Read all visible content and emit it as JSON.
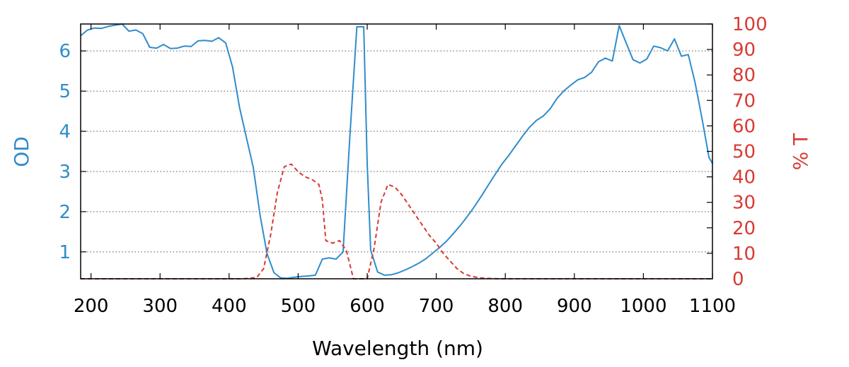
{
  "chart_data": {
    "type": "line",
    "title": "",
    "xlabel": "Wavelength (nm)",
    "ylabel_left": "OD",
    "ylabel_right": "% T",
    "xlim": [
      185,
      1100
    ],
    "ylim_left": [
      0.33,
      6.67
    ],
    "ylim_right": [
      0,
      100
    ],
    "xticks": [
      200,
      300,
      400,
      500,
      600,
      700,
      800,
      900,
      1000,
      1100
    ],
    "yticks_left": [
      1,
      2,
      3,
      4,
      5,
      6
    ],
    "yticks_right": [
      0,
      10,
      20,
      30,
      40,
      50,
      60,
      70,
      80,
      90,
      100
    ],
    "grid": "horizontal-dotted",
    "colors": {
      "od": "#2f8ccc",
      "transmission": "#d83a33"
    },
    "series": [
      {
        "axis": "left",
        "style": "solid",
        "x": [
          185,
          195,
          205,
          215,
          225,
          235,
          245,
          255,
          265,
          275,
          285,
          295,
          305,
          315,
          325,
          335,
          345,
          355,
          365,
          375,
          385,
          395,
          405,
          415,
          425,
          435,
          445,
          455,
          465,
          475,
          485,
          495,
          505,
          515,
          525,
          535,
          545,
          555,
          565,
          575,
          585,
          590,
          595,
          600,
          605,
          615,
          625,
          635,
          645,
          655,
          665,
          675,
          685,
          695,
          705,
          715,
          725,
          735,
          745,
          755,
          765,
          775,
          785,
          795,
          805,
          815,
          825,
          835,
          845,
          855,
          865,
          875,
          885,
          895,
          905,
          915,
          925,
          935,
          945,
          955,
          965,
          975,
          985,
          995,
          1005,
          1015,
          1025,
          1035,
          1045,
          1055,
          1065,
          1075,
          1085,
          1095,
          1100
        ],
        "values": [
          6.38,
          6.52,
          6.57,
          6.56,
          6.61,
          6.64,
          6.67,
          6.49,
          6.52,
          6.43,
          6.09,
          6.07,
          6.16,
          6.06,
          6.07,
          6.12,
          6.11,
          6.25,
          6.26,
          6.24,
          6.33,
          6.2,
          5.6,
          4.6,
          3.85,
          3.1,
          1.9,
          0.95,
          0.48,
          0.35,
          0.34,
          0.37,
          0.39,
          0.4,
          0.42,
          0.82,
          0.85,
          0.82,
          1.0,
          3.9,
          6.6,
          6.6,
          6.6,
          3.2,
          1.05,
          0.5,
          0.42,
          0.43,
          0.48,
          0.55,
          0.63,
          0.72,
          0.83,
          0.97,
          1.11,
          1.27,
          1.46,
          1.66,
          1.88,
          2.12,
          2.38,
          2.65,
          2.92,
          3.18,
          3.4,
          3.64,
          3.88,
          4.1,
          4.27,
          4.38,
          4.56,
          4.82,
          5.01,
          5.15,
          5.28,
          5.34,
          5.47,
          5.73,
          5.82,
          5.75,
          6.63,
          6.2,
          5.78,
          5.7,
          5.8,
          6.12,
          6.08,
          6.0,
          6.3,
          5.87,
          5.91,
          5.2,
          4.3,
          3.35,
          3.2
        ]
      },
      {
        "axis": "right",
        "style": "dashed",
        "x": [
          185,
          400,
          420,
          440,
          450,
          460,
          470,
          480,
          490,
          500,
          510,
          520,
          530,
          535,
          540,
          550,
          560,
          570,
          580,
          590,
          600,
          610,
          620,
          630,
          640,
          650,
          660,
          670,
          680,
          690,
          700,
          710,
          720,
          730,
          740,
          750,
          760,
          770,
          780,
          790,
          1100
        ],
        "values": [
          0,
          0,
          0,
          0.5,
          4,
          17,
          34,
          44,
          45,
          42,
          40,
          39,
          37,
          31,
          15,
          14,
          15,
          11,
          0,
          0,
          0,
          12,
          30,
          37,
          36,
          33,
          29,
          25,
          21,
          17,
          14,
          10,
          7,
          4,
          2,
          1,
          0.5,
          0.2,
          0.1,
          0,
          0
        ]
      }
    ]
  }
}
